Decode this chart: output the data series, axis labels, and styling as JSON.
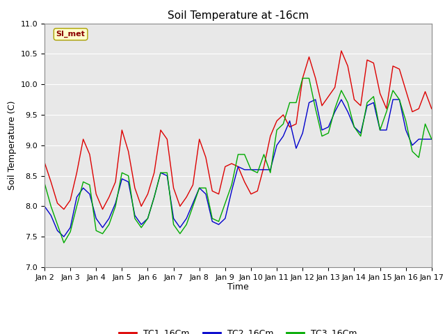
{
  "title": "Soil Temperature at -16cm",
  "xlabel": "Time",
  "ylabel": "Soil Temperature (C)",
  "ylim": [
    7.0,
    11.0
  ],
  "yticks": [
    7.0,
    7.5,
    8.0,
    8.5,
    9.0,
    9.5,
    10.0,
    10.5,
    11.0
  ],
  "xtick_labels": [
    "Jan 2",
    "Jan 3",
    "Jan 4",
    "Jan 5",
    "Jan 6",
    "Jan 7",
    "Jan 8",
    "Jan 9",
    "Jan 10",
    "Jan 11",
    "Jan 12",
    "Jan 13",
    "Jan 14",
    "Jan 15",
    "Jan 16",
    "Jan 17"
  ],
  "colors": {
    "TC1": "#dd0000",
    "TC2": "#0000cc",
    "TC3": "#00aa00"
  },
  "legend_labels": [
    "TC1_16Cm",
    "TC2_16Cm",
    "TC3_16Cm"
  ],
  "watermark_text": "SI_met",
  "watermark_color": "#8b0000",
  "watermark_bg": "#ffffcc",
  "background_color": "#e8e8e8",
  "grid_color": "#ffffff",
  "title_fontsize": 11,
  "axis_label_fontsize": 9,
  "tick_fontsize": 8,
  "legend_fontsize": 9,
  "TC1_x": [
    0,
    0.25,
    0.5,
    0.75,
    1.0,
    1.25,
    1.5,
    1.75,
    2.0,
    2.25,
    2.5,
    2.75,
    3.0,
    3.25,
    3.5,
    3.75,
    4.0,
    4.25,
    4.5,
    4.75,
    5.0,
    5.25,
    5.5,
    5.75,
    6.0,
    6.25,
    6.5,
    6.75,
    7.0,
    7.25,
    7.5,
    7.75,
    8.0,
    8.25,
    8.5,
    8.75,
    9.0,
    9.25,
    9.5,
    9.75,
    10.0,
    10.25,
    10.5,
    10.75,
    11.0,
    11.25,
    11.5,
    11.75,
    12.0,
    12.25,
    12.5,
    12.75,
    13.0,
    13.25,
    13.5,
    13.75,
    14.0,
    14.25,
    14.5,
    14.75,
    15.0
  ],
  "TC1_y": [
    8.72,
    8.4,
    8.05,
    7.95,
    8.1,
    8.55,
    9.1,
    8.85,
    8.2,
    7.95,
    8.15,
    8.4,
    9.25,
    8.9,
    8.3,
    8.0,
    8.2,
    8.55,
    9.25,
    9.1,
    8.3,
    8.0,
    8.15,
    8.35,
    9.1,
    8.8,
    8.25,
    8.2,
    8.65,
    8.7,
    8.65,
    8.4,
    8.2,
    8.25,
    8.65,
    9.15,
    9.4,
    9.5,
    9.3,
    9.35,
    10.1,
    10.45,
    10.1,
    9.65,
    9.8,
    9.95,
    10.55,
    10.3,
    9.75,
    9.65,
    10.4,
    10.35,
    9.85,
    9.6,
    10.3,
    10.25,
    9.9,
    9.55,
    9.6,
    9.88,
    9.6
  ],
  "TC2_x": [
    0,
    0.25,
    0.5,
    0.75,
    1.0,
    1.25,
    1.5,
    1.75,
    2.0,
    2.25,
    2.5,
    2.75,
    3.0,
    3.25,
    3.5,
    3.75,
    4.0,
    4.25,
    4.5,
    4.75,
    5.0,
    5.25,
    5.5,
    5.75,
    6.0,
    6.25,
    6.5,
    6.75,
    7.0,
    7.25,
    7.5,
    7.75,
    8.0,
    8.25,
    8.5,
    8.75,
    9.0,
    9.25,
    9.5,
    9.75,
    10.0,
    10.25,
    10.5,
    10.75,
    11.0,
    11.25,
    11.5,
    11.75,
    12.0,
    12.25,
    12.5,
    12.75,
    13.0,
    13.25,
    13.5,
    13.75,
    14.0,
    14.25,
    14.5,
    14.75,
    15.0
  ],
  "TC2_y": [
    8.0,
    7.85,
    7.6,
    7.5,
    7.65,
    8.15,
    8.3,
    8.2,
    7.8,
    7.65,
    7.8,
    8.05,
    8.45,
    8.4,
    7.85,
    7.7,
    7.8,
    8.15,
    8.55,
    8.5,
    7.8,
    7.65,
    7.8,
    8.05,
    8.3,
    8.2,
    7.75,
    7.7,
    7.8,
    8.25,
    8.65,
    8.6,
    8.6,
    8.6,
    8.6,
    8.6,
    9.0,
    9.15,
    9.4,
    8.95,
    9.2,
    9.7,
    9.75,
    9.25,
    9.3,
    9.55,
    9.75,
    9.55,
    9.3,
    9.2,
    9.65,
    9.7,
    9.25,
    9.25,
    9.75,
    9.75,
    9.25,
    9.0,
    9.1,
    9.1,
    9.1
  ],
  "TC3_x": [
    0,
    0.25,
    0.5,
    0.75,
    1.0,
    1.25,
    1.5,
    1.75,
    2.0,
    2.25,
    2.5,
    2.75,
    3.0,
    3.25,
    3.5,
    3.75,
    4.0,
    4.25,
    4.5,
    4.75,
    5.0,
    5.25,
    5.5,
    5.75,
    6.0,
    6.25,
    6.5,
    6.75,
    7.0,
    7.25,
    7.5,
    7.75,
    8.0,
    8.25,
    8.5,
    8.75,
    9.0,
    9.25,
    9.5,
    9.75,
    10.0,
    10.25,
    10.5,
    10.75,
    11.0,
    11.25,
    11.5,
    11.75,
    12.0,
    12.25,
    12.5,
    12.75,
    13.0,
    13.25,
    13.5,
    13.75,
    14.0,
    14.25,
    14.5,
    14.75,
    15.0
  ],
  "TC3_y": [
    8.38,
    8.0,
    7.7,
    7.4,
    7.58,
    8.0,
    8.4,
    8.35,
    7.6,
    7.55,
    7.7,
    8.0,
    8.55,
    8.5,
    7.8,
    7.65,
    7.8,
    8.15,
    8.55,
    8.55,
    7.7,
    7.55,
    7.7,
    8.0,
    8.3,
    8.3,
    7.8,
    7.75,
    8.05,
    8.35,
    8.85,
    8.85,
    8.6,
    8.55,
    8.85,
    8.55,
    9.25,
    9.35,
    9.7,
    9.7,
    10.1,
    10.1,
    9.6,
    9.15,
    9.2,
    9.6,
    9.9,
    9.7,
    9.3,
    9.15,
    9.7,
    9.8,
    9.25,
    9.55,
    9.9,
    9.75,
    9.4,
    8.9,
    8.8,
    9.35,
    9.1
  ]
}
